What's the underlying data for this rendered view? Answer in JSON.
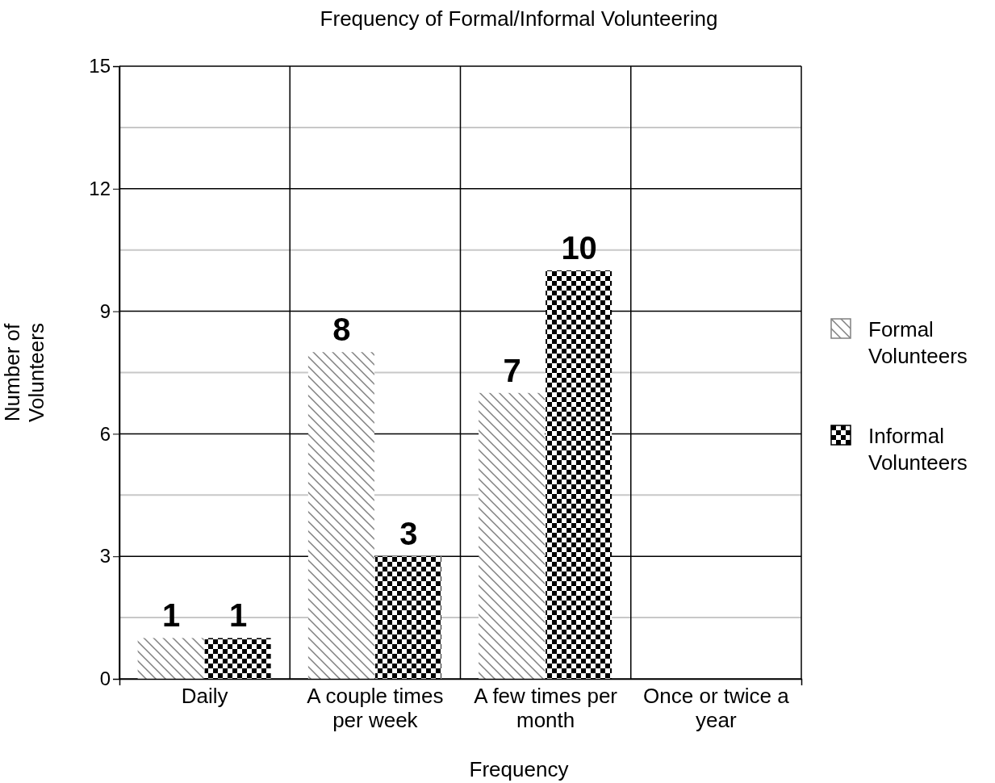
{
  "chart_data": {
    "type": "bar",
    "title": "Frequency of Formal/Informal Volunteering",
    "xlabel": "Frequency",
    "ylabel": "Number of Volunteers",
    "categories": [
      "Daily",
      "A couple times per week",
      "A few times per month",
      "Once or twice a year"
    ],
    "series": [
      {
        "name": "Formal Volunteers",
        "color": "#808080",
        "values": [
          1,
          8,
          7,
          0
        ],
        "value_labels": [
          "1",
          "8",
          "7",
          null
        ]
      },
      {
        "name": "Informal Volunteers",
        "color": "#000000",
        "values": [
          1,
          3,
          10,
          0
        ],
        "value_labels": [
          "1",
          "3",
          "10",
          null
        ]
      }
    ],
    "ylim": [
      0,
      15
    ],
    "yticks": [
      0,
      {
        "value": 1.5,
        "label": null
      },
      3,
      {
        "value": 4.5,
        "label": null
      },
      6,
      {
        "value": 7.5,
        "label": null
      },
      9,
      {
        "value": 10.5,
        "label": null
      },
      12,
      {
        "value": 13.5,
        "label": null
      },
      15
    ],
    "grid": true,
    "legend": "right"
  }
}
